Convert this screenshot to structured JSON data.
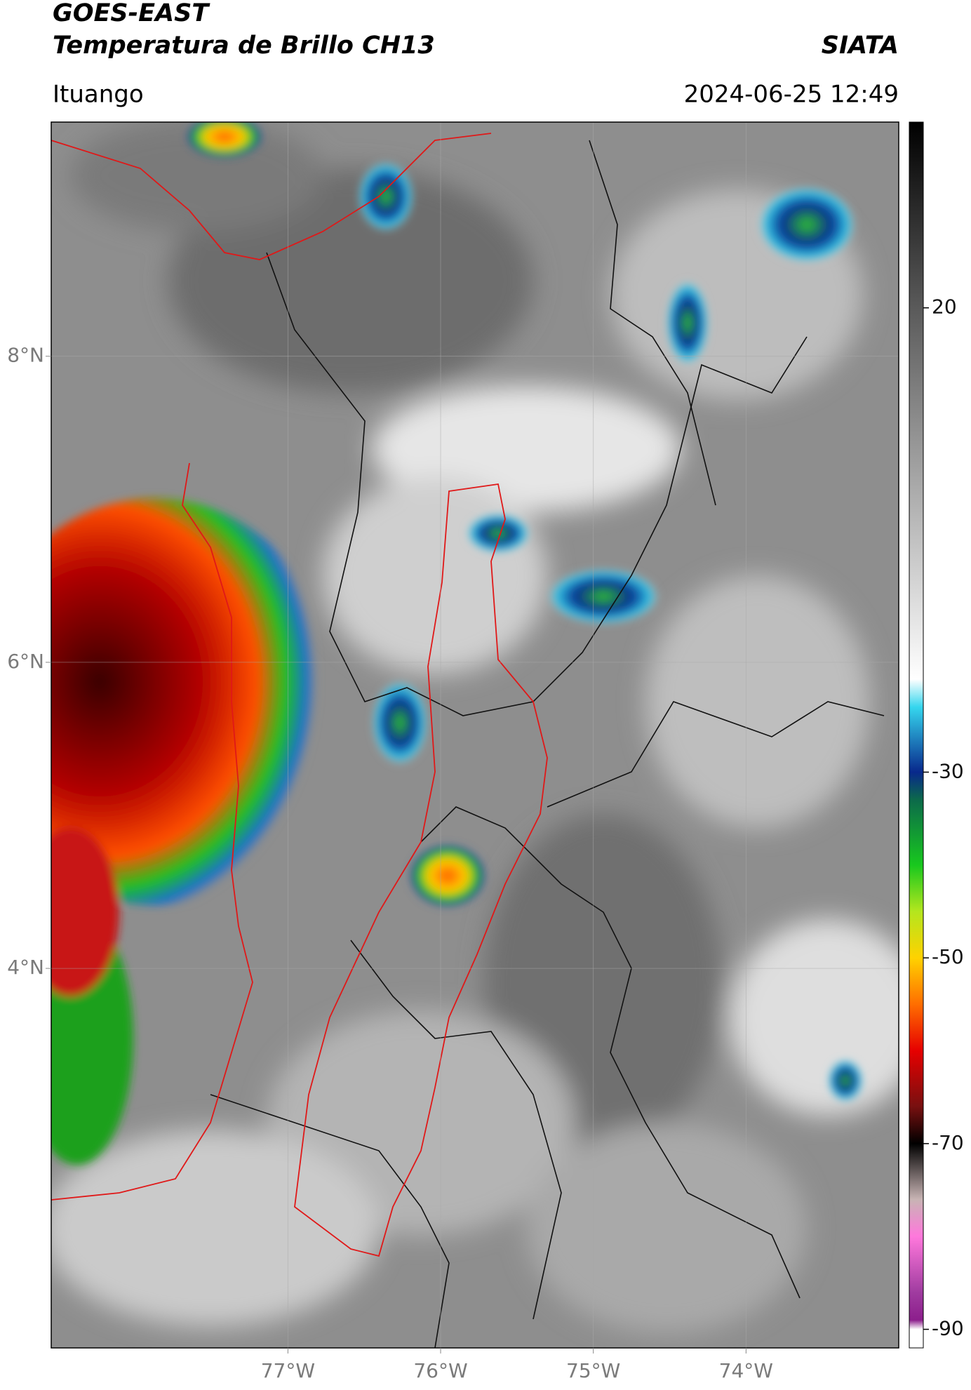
{
  "header": {
    "title": "GOES-EAST",
    "subtitle": "Temperatura de Brillo CH13",
    "credit": "SIATA",
    "location": "Ituango",
    "timestamp": "2024-06-25 12:49"
  },
  "map": {
    "xlim": [
      -78.55,
      -73.0
    ],
    "ylim": [
      1.52,
      9.53
    ],
    "xticks": [
      {
        "value": -77,
        "label": "77°W"
      },
      {
        "value": -76,
        "label": "76°W"
      },
      {
        "value": -75,
        "label": "75°W"
      },
      {
        "value": -74,
        "label": "74°W"
      }
    ],
    "yticks": [
      {
        "value": 8,
        "label": "8°N"
      },
      {
        "value": 6,
        "label": "6°N"
      },
      {
        "value": 4,
        "label": "4°N"
      }
    ],
    "grid": true
  },
  "colorbar": {
    "lim": [
      -92,
      40
    ],
    "ticks": [
      20,
      -30,
      -50,
      -70,
      -90
    ],
    "stops": [
      [
        40,
        "#000000"
      ],
      [
        20,
        "#5a5a5a"
      ],
      [
        -20,
        "#ffffff"
      ],
      [
        -23,
        "#35d6ee"
      ],
      [
        -30,
        "#08288c"
      ],
      [
        -33,
        "#0c6a4a"
      ],
      [
        -40,
        "#18c81e"
      ],
      [
        -45,
        "#b4e61e"
      ],
      [
        -50,
        "#ffd200"
      ],
      [
        -55,
        "#ff6e00"
      ],
      [
        -60,
        "#e60000"
      ],
      [
        -66,
        "#781010"
      ],
      [
        -70,
        "#000000"
      ],
      [
        -76,
        "#c8b4b4"
      ],
      [
        -80,
        "#ff78dc"
      ],
      [
        -86,
        "#a03ca0"
      ],
      [
        -89,
        "#8c1e8c"
      ],
      [
        -90,
        "#ffffff"
      ],
      [
        -92,
        "#ffffff"
      ]
    ]
  }
}
